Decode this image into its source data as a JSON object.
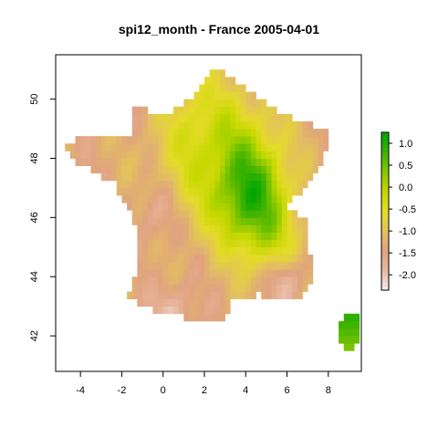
{
  "title": "spi12_month - France 2005-04-01",
  "chart_data": {
    "type": "heatmap",
    "title": "spi12_month - France 2005-04-01",
    "xlim": [
      -5.2,
      9.6
    ],
    "ylim": [
      40.8,
      51.5
    ],
    "x_ticks": [
      -4,
      -2,
      0,
      2,
      4,
      6,
      8
    ],
    "y_ticks": [
      42,
      44,
      46,
      48,
      50
    ],
    "legend": {
      "placement": "right",
      "range": [
        -2.35,
        1.25
      ],
      "ticks": [
        "1.0",
        "0.5",
        "0.0",
        "-0.5",
        "-1.0",
        "-1.5",
        "-2.0"
      ],
      "colors": [
        "#f3ecec",
        "#e9b8a1",
        "#e0a37f",
        "#e3c25d",
        "#e4db28",
        "#c6d800",
        "#85c700",
        "#3cb200",
        "#00a600"
      ]
    },
    "grid_resolution_deg": 0.25,
    "value_field_description_note": ""
  }
}
